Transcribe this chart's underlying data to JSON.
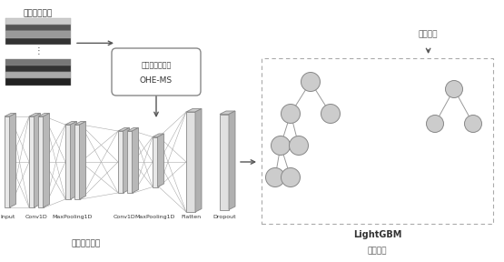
{
  "bg_color": "white",
  "top_text": "网络流量数据",
  "preprocess_line1": "数据预处理算法",
  "preprocess_line2": "OHE-MS",
  "feature_label": "特征提取算法",
  "classify_result": "分类结果",
  "lightgbm_line1": "LightGBM",
  "lightgbm_line2": "分类算法",
  "layer_labels": [
    "Input",
    "Conv1D",
    "MaxPooling1D",
    "Conv1D",
    "MaxPooling1D",
    "Flatten",
    "Dropout"
  ],
  "arrow_color": "#555555",
  "strip_colors1": [
    "#cccccc",
    "#555555",
    "#999999",
    "#333333"
  ],
  "strip_colors2": [
    "#777777",
    "#333333",
    "#aaaaaa",
    "#222222"
  ],
  "node_color": "#cccccc",
  "node_edge": "#888888",
  "slab_face": "#e8e8e8",
  "slab_side": "#b8b8b8",
  "slab_top": "#d0d0d0",
  "slab_edge": "#888888"
}
